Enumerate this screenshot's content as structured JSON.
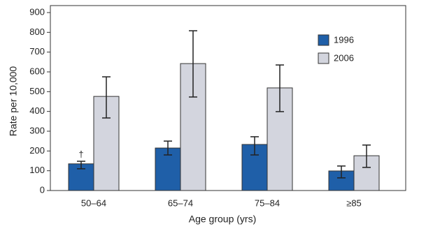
{
  "chart_data": {
    "type": "bar",
    "categories": [
      "50–64",
      "65–74",
      "75–84",
      "≥85"
    ],
    "series": [
      {
        "name": "1996",
        "color": "#1f5fa8",
        "values": [
          135,
          215,
          233,
          99
        ],
        "ci_low": [
          110,
          180,
          180,
          64
        ],
        "ci_high": [
          148,
          250,
          272,
          124
        ]
      },
      {
        "name": "2006",
        "color": "#d3d5de",
        "values": [
          476,
          642,
          519,
          176
        ],
        "ci_low": [
          367,
          473,
          399,
          117
        ],
        "ci_high": [
          575,
          808,
          635,
          230
        ]
      }
    ],
    "ylim": [
      0,
      900
    ],
    "yticks": [
      0,
      100,
      200,
      300,
      400,
      500,
      600,
      700,
      800,
      900
    ],
    "xlabel": "Age group (yrs)",
    "ylabel": "Rate per 10,000",
    "annotations": [
      {
        "text": "†",
        "series": 0,
        "category": 0
      }
    ],
    "legend": "upper right"
  }
}
